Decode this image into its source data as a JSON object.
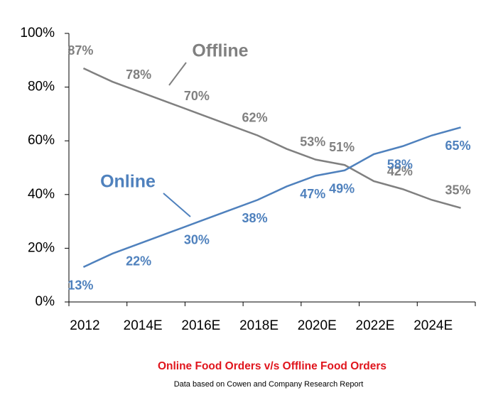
{
  "chart_data": {
    "type": "line",
    "title": "Online Food Orders v/s Offline Food Orders",
    "subtitle": "Data based on Cowen and Company Research Report",
    "categories": [
      "2012",
      null,
      "2014E",
      null,
      "2016E",
      null,
      "2018E",
      null,
      "2020E",
      null,
      "2022E",
      null,
      "2024E",
      null
    ],
    "series": [
      {
        "name": "Offline",
        "color": "#808080",
        "values": [
          87,
          82,
          78,
          74,
          70,
          66,
          62,
          57,
          53,
          51,
          45,
          42,
          38,
          35
        ],
        "value_labels": [
          "87%",
          null,
          "78%",
          null,
          "70%",
          null,
          "62%",
          null,
          "53%",
          "51%",
          null,
          "42%",
          null,
          "35%"
        ]
      },
      {
        "name": "Online",
        "color": "#4f81bd",
        "values": [
          13,
          18,
          22,
          26,
          30,
          34,
          38,
          43,
          47,
          49,
          55,
          58,
          62,
          65
        ],
        "value_labels": [
          "13%",
          null,
          "22%",
          null,
          "30%",
          null,
          "38%",
          null,
          "47%",
          "49%",
          null,
          "58%",
          null,
          "65%"
        ]
      }
    ],
    "ylim": [
      0,
      100
    ],
    "yticks": [
      {
        "value": 0,
        "label": "0%"
      },
      {
        "value": 20,
        "label": "20%"
      },
      {
        "value": 40,
        "label": "40%"
      },
      {
        "value": 60,
        "label": "60%"
      },
      {
        "value": 80,
        "label": "80%"
      },
      {
        "value": 100,
        "label": "100%"
      }
    ],
    "grid": false
  }
}
